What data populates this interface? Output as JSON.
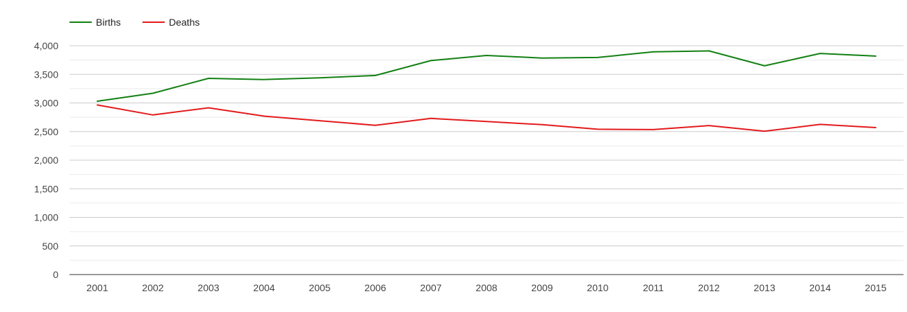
{
  "chart_data": {
    "type": "line",
    "categories": [
      "2001",
      "2002",
      "2003",
      "2004",
      "2005",
      "2006",
      "2007",
      "2008",
      "2009",
      "2010",
      "2011",
      "2012",
      "2013",
      "2014",
      "2015"
    ],
    "series": [
      {
        "name": "Births",
        "color": "#128012",
        "values": [
          3030,
          3170,
          3430,
          3410,
          3440,
          3480,
          3740,
          3830,
          3785,
          3795,
          3895,
          3910,
          3650,
          3865,
          3820
        ]
      },
      {
        "name": "Deaths",
        "color": "#e31a1c",
        "values": [
          2965,
          2790,
          2915,
          2770,
          2690,
          2610,
          2730,
          2675,
          2620,
          2540,
          2535,
          2605,
          2505,
          2625,
          2570
        ]
      }
    ],
    "yticks": [
      "0",
      "500",
      "1,000",
      "1,500",
      "2,000",
      "2,500",
      "3,000",
      "3,500",
      "4,000"
    ],
    "ylim": [
      0,
      4000
    ],
    "title": "",
    "xlabel": "",
    "ylabel": "",
    "grid": true,
    "legend_position": "top-left"
  }
}
